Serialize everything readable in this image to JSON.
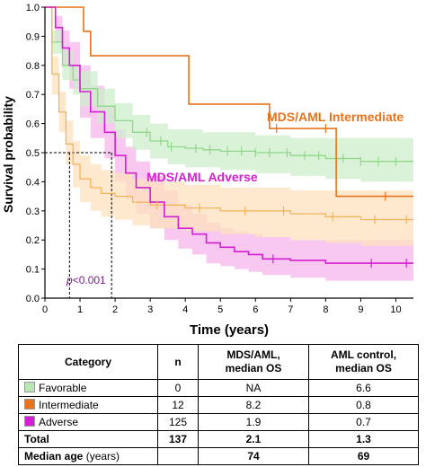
{
  "chart_data": {
    "type": "line",
    "title": "",
    "xlabel": "Time (years)",
    "ylabel": "Survival probability",
    "xlim": [
      0,
      10.5
    ],
    "ylim": [
      0,
      1.0
    ],
    "xticks": [
      "0",
      "1",
      "2",
      "3",
      "4",
      "5",
      "6",
      "7",
      "8",
      "9",
      "10"
    ],
    "yticks": [
      "0.0",
      "0.1",
      "0.2",
      "0.3",
      "0.4",
      "0.5",
      "0.6",
      "0.7",
      "0.8",
      "0.9",
      "1.0"
    ],
    "median_reference_line": 0.5,
    "vertical_reference_lines": [
      0.7,
      1.9
    ],
    "annotation": {
      "text": "p<0.001",
      "italic_prefix": "p",
      "rest": "<0.001"
    },
    "series": [
      {
        "name": "MDS/AML Intermediate",
        "color": "#e8731c",
        "x": [
          0,
          1.1,
          1.1,
          1.3,
          1.3,
          4.1,
          4.1,
          6.4,
          6.4,
          8.3,
          8.3,
          10.5
        ],
        "y": [
          1.0,
          1.0,
          0.917,
          0.917,
          0.833,
          0.833,
          0.667,
          0.667,
          0.583,
          0.583,
          0.35,
          0.35
        ],
        "censor_x": [
          6.6,
          8.0,
          9.7
        ]
      },
      {
        "name": "MDS/AML Adverse",
        "color": "#d21fd2",
        "band_color": "#f6b6ec",
        "x": [
          0,
          0.3,
          0.5,
          0.7,
          1.0,
          1.3,
          1.7,
          2.0,
          2.3,
          2.6,
          3.0,
          3.4,
          3.8,
          4.2,
          4.6,
          5.0,
          5.4,
          5.8,
          6.2,
          7.0,
          8.0,
          9.0,
          10.5
        ],
        "y": [
          1.0,
          0.93,
          0.86,
          0.8,
          0.71,
          0.64,
          0.57,
          0.49,
          0.43,
          0.38,
          0.33,
          0.28,
          0.24,
          0.22,
          0.19,
          0.175,
          0.16,
          0.15,
          0.135,
          0.13,
          0.12,
          0.12,
          0.12
        ],
        "lower": [
          1.0,
          0.88,
          0.8,
          0.72,
          0.62,
          0.55,
          0.48,
          0.4,
          0.34,
          0.29,
          0.24,
          0.2,
          0.17,
          0.15,
          0.12,
          0.11,
          0.1,
          0.09,
          0.08,
          0.07,
          0.06,
          0.06,
          0.06
        ],
        "upper": [
          1.0,
          0.97,
          0.92,
          0.88,
          0.8,
          0.73,
          0.66,
          0.58,
          0.52,
          0.47,
          0.42,
          0.37,
          0.32,
          0.29,
          0.26,
          0.24,
          0.23,
          0.22,
          0.21,
          0.2,
          0.2,
          0.2,
          0.2
        ],
        "censor_x": [
          6.5,
          9.3,
          10.3
        ]
      },
      {
        "name": "Favorable",
        "color": "#8fd88a",
        "band_color": "#cdeeca",
        "x": [
          0,
          0.2,
          0.5,
          0.8,
          1.0,
          1.5,
          2.0,
          2.5,
          3.0,
          3.5,
          4.0,
          4.5,
          5.0,
          6.0,
          7.0,
          8.0,
          9.0,
          10.5
        ],
        "y": [
          1.0,
          0.88,
          0.8,
          0.75,
          0.72,
          0.66,
          0.61,
          0.57,
          0.54,
          0.52,
          0.515,
          0.51,
          0.505,
          0.5,
          0.49,
          0.48,
          0.47,
          0.47
        ],
        "lower": [
          1.0,
          0.84,
          0.75,
          0.7,
          0.66,
          0.6,
          0.55,
          0.51,
          0.48,
          0.46,
          0.45,
          0.45,
          0.44,
          0.43,
          0.42,
          0.41,
          0.4,
          0.4
        ],
        "upper": [
          1.0,
          0.92,
          0.85,
          0.8,
          0.78,
          0.72,
          0.67,
          0.63,
          0.6,
          0.58,
          0.58,
          0.57,
          0.57,
          0.56,
          0.55,
          0.55,
          0.55,
          0.55
        ],
        "censor_x": [
          2.9,
          3.3,
          3.6,
          4.3,
          4.7,
          5.2,
          5.6,
          6.0,
          6.4,
          6.9,
          7.4,
          7.8,
          8.5,
          9.0,
          9.5,
          10.0
        ]
      },
      {
        "name": "Intermediate",
        "color": "#f2b55e",
        "band_color": "#fde1bd",
        "x": [
          0,
          0.2,
          0.4,
          0.6,
          0.8,
          1.0,
          1.3,
          1.6,
          2.0,
          2.5,
          3.0,
          4.0,
          5.0,
          6.0,
          7.0,
          8.0,
          9.0,
          10.5
        ],
        "y": [
          1.0,
          0.77,
          0.64,
          0.53,
          0.46,
          0.41,
          0.38,
          0.36,
          0.35,
          0.33,
          0.32,
          0.31,
          0.3,
          0.3,
          0.29,
          0.28,
          0.27,
          0.27
        ],
        "lower": [
          1.0,
          0.7,
          0.57,
          0.46,
          0.38,
          0.33,
          0.3,
          0.28,
          0.27,
          0.25,
          0.24,
          0.23,
          0.22,
          0.21,
          0.2,
          0.19,
          0.18,
          0.17
        ],
        "upper": [
          1.0,
          0.83,
          0.71,
          0.61,
          0.54,
          0.49,
          0.46,
          0.44,
          0.43,
          0.41,
          0.4,
          0.39,
          0.38,
          0.38,
          0.37,
          0.37,
          0.37,
          0.37
        ],
        "censor_x": [
          3.2,
          4.4,
          5.7,
          6.8,
          8.2,
          9.4,
          10.3
        ]
      }
    ]
  },
  "table": {
    "headers": [
      "Category",
      "n",
      "MDS/AML,\nmedian OS",
      "AML control,\nmedian OS"
    ],
    "rows": [
      {
        "category": "Favorable",
        "swatch": "#b9e6b4",
        "n": "0",
        "mds": "NA",
        "aml": "6.6",
        "bold": false
      },
      {
        "category": "Intermediate",
        "swatch": "#e8731c",
        "n": "12",
        "mds": "8.2",
        "aml": "0.8",
        "bold": false
      },
      {
        "category": "Adverse",
        "swatch": "#d21fd2",
        "n": "125",
        "mds": "1.9",
        "aml": "0.7",
        "bold": false
      },
      {
        "category": "Total",
        "swatch": "",
        "n": "137",
        "mds": "2.1",
        "aml": "1.3",
        "bold": true
      },
      {
        "category": "Median age",
        "category_suffix": "(years)",
        "swatch": "",
        "n": "",
        "mds": "74",
        "aml": "69",
        "bold": true
      }
    ]
  }
}
